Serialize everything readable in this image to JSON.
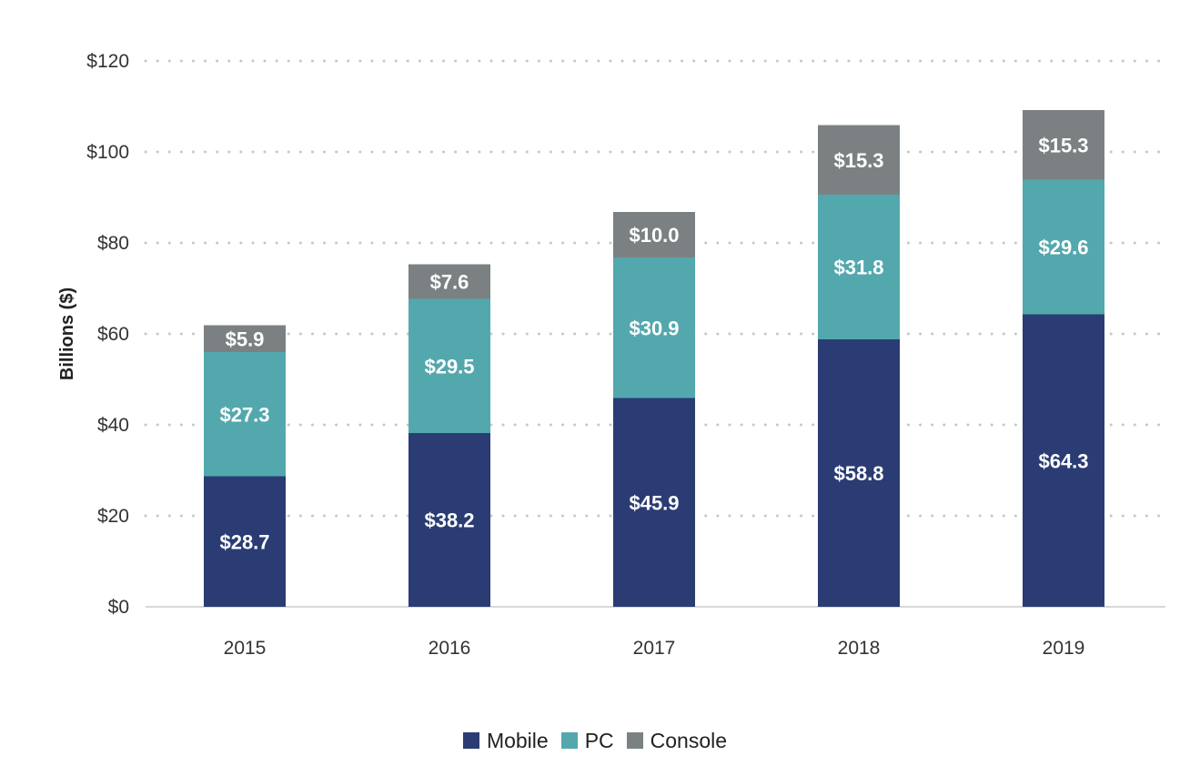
{
  "chart_data": {
    "type": "bar",
    "stacked": true,
    "categories": [
      "2015",
      "2016",
      "2017",
      "2018",
      "2019"
    ],
    "series": [
      {
        "name": "Mobile",
        "color": "#2a3c73",
        "values": [
          28.7,
          38.2,
          45.9,
          58.8,
          64.3
        ],
        "labels": [
          "$28.7",
          "$38.2",
          "$45.9",
          "$58.8",
          "$64.3"
        ]
      },
      {
        "name": "PC",
        "color": "#53a8ad",
        "values": [
          27.3,
          29.5,
          30.9,
          31.8,
          29.6
        ],
        "labels": [
          "$27.3",
          "$29.5",
          "$30.9",
          "$31.8",
          "$29.6"
        ]
      },
      {
        "name": "Console",
        "color": "#7b8182",
        "values": [
          5.9,
          7.6,
          10.0,
          15.3,
          15.3
        ],
        "labels": [
          "$5.9",
          "$7.6",
          "$10.0",
          "$15.3",
          "$15.3"
        ]
      }
    ],
    "ylabel": "Billions ($)",
    "ylim": [
      0,
      120
    ],
    "yticks": [
      0,
      20,
      40,
      60,
      80,
      100,
      120
    ],
    "ytick_labels": [
      "$0",
      "$20",
      "$40",
      "$60",
      "$80",
      "$100",
      "$120"
    ],
    "grid": "dotted horizontal",
    "legend_position": "bottom-center"
  }
}
